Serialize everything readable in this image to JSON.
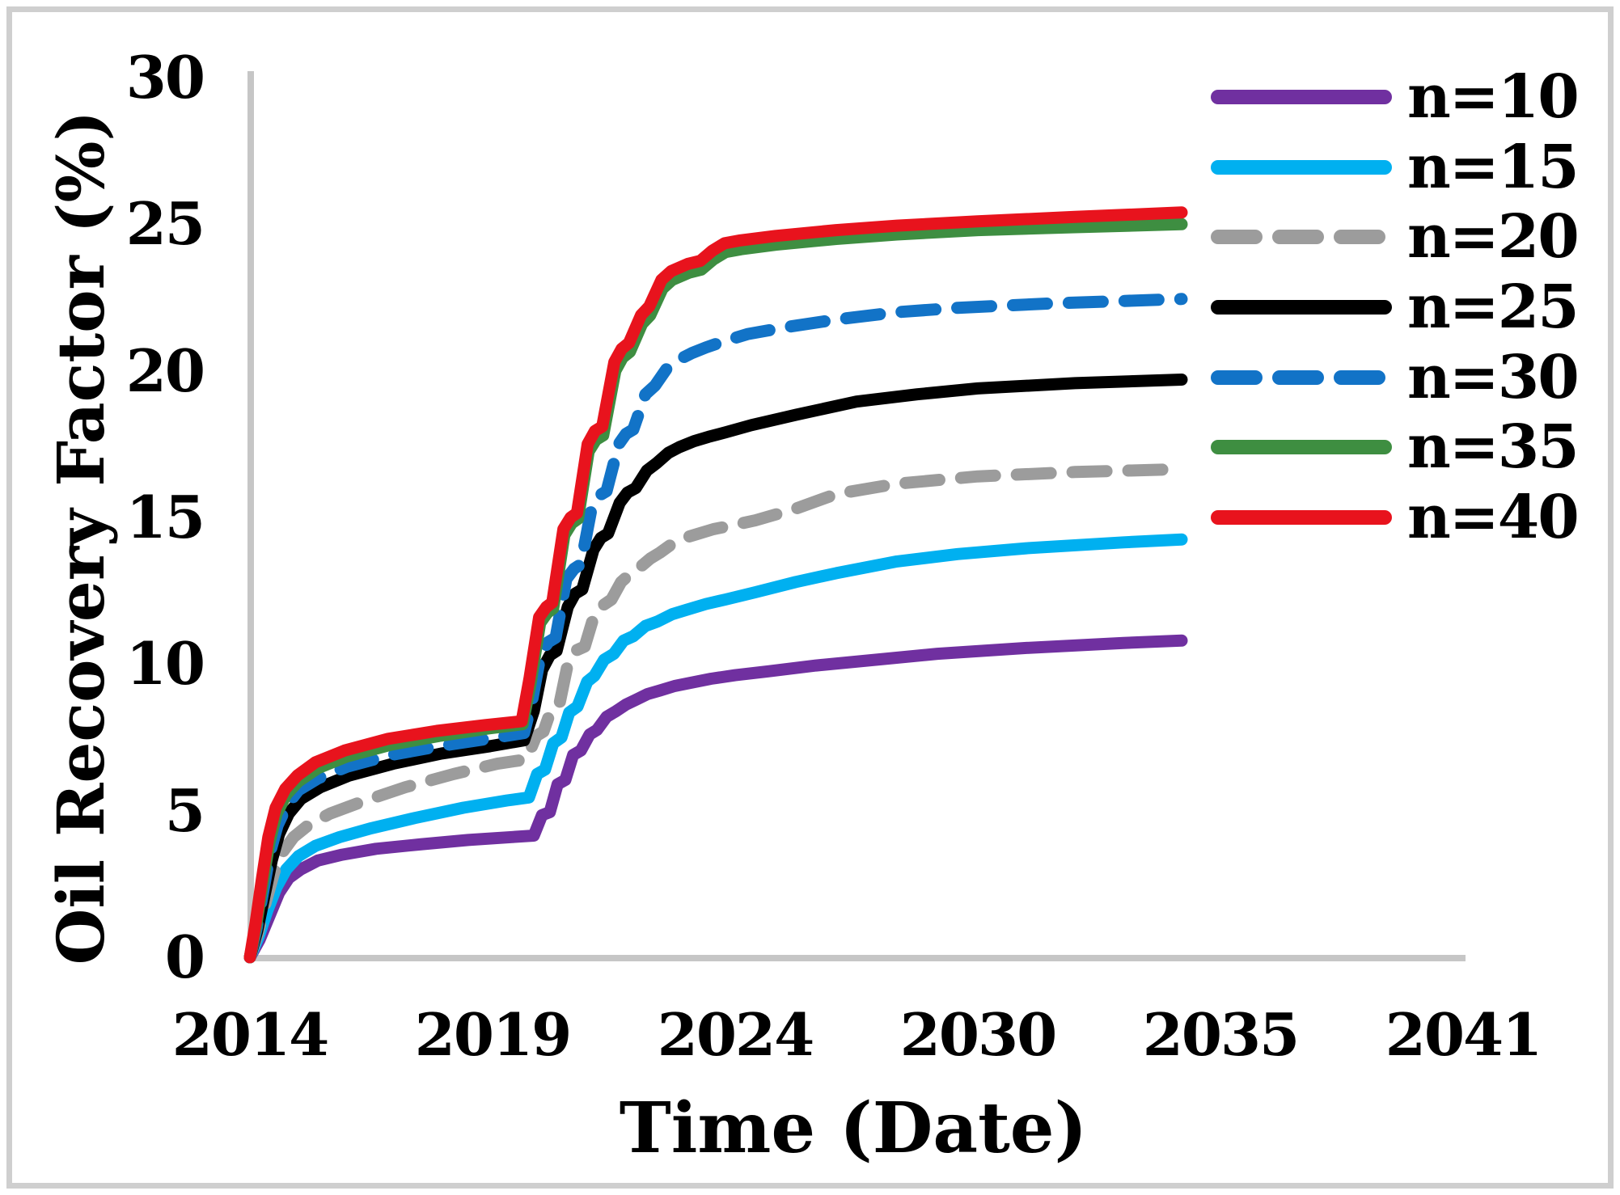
{
  "chart_data": {
    "type": "line",
    "title": "",
    "xlabel": "Time (Date)",
    "ylabel": "Oil Recovery Factor (%)",
    "x_tick_labels": [
      "2014",
      "2019",
      "2024",
      "2030",
      "2035",
      "2041"
    ],
    "x_tick_years": [
      2014,
      2019,
      2024,
      2030,
      2035,
      2041
    ],
    "y_tick_labels": [
      "0",
      "5",
      "10",
      "15",
      "20",
      "25",
      "30"
    ],
    "y_ticks": [
      0,
      5,
      10,
      15,
      20,
      25,
      30
    ],
    "ylim": [
      0,
      30
    ],
    "grid": false,
    "legend_position": "upper-right",
    "axis_color": "#C6C6C6",
    "series": [
      {
        "name": "n=10",
        "color": "#7030A0",
        "style": "solid",
        "points": [
          [
            2014,
            0
          ],
          [
            2014.2,
            0.6
          ],
          [
            2014.4,
            1.4
          ],
          [
            2014.6,
            2.2
          ],
          [
            2014.8,
            2.7
          ],
          [
            2015.05,
            3.0
          ],
          [
            2015.4,
            3.3
          ],
          [
            2015.9,
            3.5
          ],
          [
            2016.6,
            3.7
          ],
          [
            2017.5,
            3.85
          ],
          [
            2018.5,
            4.0
          ],
          [
            2019.4,
            4.1
          ],
          [
            2019.85,
            4.15
          ],
          [
            2020.02,
            4.85
          ],
          [
            2020.18,
            4.95
          ],
          [
            2020.34,
            5.9
          ],
          [
            2020.5,
            6.05
          ],
          [
            2020.66,
            6.9
          ],
          [
            2020.82,
            7.05
          ],
          [
            2021.0,
            7.6
          ],
          [
            2021.15,
            7.75
          ],
          [
            2021.35,
            8.2
          ],
          [
            2021.55,
            8.4
          ],
          [
            2021.75,
            8.62
          ],
          [
            2021.95,
            8.78
          ],
          [
            2022.2,
            8.98
          ],
          [
            2022.45,
            9.1
          ],
          [
            2022.75,
            9.25
          ],
          [
            2023.05,
            9.35
          ],
          [
            2023.5,
            9.5
          ],
          [
            2024.0,
            9.62
          ],
          [
            2024.8,
            9.75
          ],
          [
            2026.0,
            9.95
          ],
          [
            2027.5,
            10.15
          ],
          [
            2029.0,
            10.35
          ],
          [
            2031.0,
            10.55
          ],
          [
            2033.0,
            10.72
          ],
          [
            2034.2,
            10.8
          ]
        ]
      },
      {
        "name": "n=15",
        "color": "#00B0F0",
        "style": "solid",
        "points": [
          [
            2014,
            0
          ],
          [
            2014.18,
            0.7
          ],
          [
            2014.36,
            1.6
          ],
          [
            2014.55,
            2.4
          ],
          [
            2014.75,
            3.0
          ],
          [
            2015.0,
            3.45
          ],
          [
            2015.35,
            3.8
          ],
          [
            2015.85,
            4.1
          ],
          [
            2016.5,
            4.4
          ],
          [
            2017.4,
            4.75
          ],
          [
            2018.4,
            5.1
          ],
          [
            2019.3,
            5.35
          ],
          [
            2019.75,
            5.45
          ],
          [
            2019.92,
            6.25
          ],
          [
            2020.08,
            6.4
          ],
          [
            2020.25,
            7.3
          ],
          [
            2020.42,
            7.5
          ],
          [
            2020.58,
            8.35
          ],
          [
            2020.75,
            8.55
          ],
          [
            2020.95,
            9.4
          ],
          [
            2021.1,
            9.6
          ],
          [
            2021.3,
            10.15
          ],
          [
            2021.5,
            10.35
          ],
          [
            2021.7,
            10.8
          ],
          [
            2021.9,
            10.95
          ],
          [
            2022.15,
            11.3
          ],
          [
            2022.4,
            11.45
          ],
          [
            2022.7,
            11.7
          ],
          [
            2023.0,
            11.85
          ],
          [
            2023.4,
            12.05
          ],
          [
            2023.8,
            12.2
          ],
          [
            2024.5,
            12.45
          ],
          [
            2025.5,
            12.8
          ],
          [
            2026.5,
            13.1
          ],
          [
            2028.0,
            13.5
          ],
          [
            2029.5,
            13.75
          ],
          [
            2031.0,
            13.95
          ],
          [
            2033.0,
            14.15
          ],
          [
            2034.2,
            14.25
          ]
        ]
      },
      {
        "name": "n=20",
        "color": "#9C9C9C",
        "style": "dashed",
        "points": [
          [
            2014,
            0
          ],
          [
            2014.16,
            0.8
          ],
          [
            2014.33,
            1.9
          ],
          [
            2014.5,
            2.9
          ],
          [
            2014.68,
            3.6
          ],
          [
            2014.9,
            4.1
          ],
          [
            2015.2,
            4.5
          ],
          [
            2015.65,
            4.9
          ],
          [
            2016.3,
            5.3
          ],
          [
            2017.2,
            5.8
          ],
          [
            2018.2,
            6.25
          ],
          [
            2019.1,
            6.6
          ],
          [
            2019.7,
            6.75
          ],
          [
            2019.9,
            7.55
          ],
          [
            2020.05,
            7.7
          ],
          [
            2020.22,
            8.5
          ],
          [
            2020.38,
            8.65
          ],
          [
            2020.55,
            10.0
          ],
          [
            2020.7,
            10.45
          ],
          [
            2020.9,
            10.6
          ],
          [
            2021.1,
            11.7
          ],
          [
            2021.27,
            12.0
          ],
          [
            2021.45,
            12.2
          ],
          [
            2021.65,
            12.8
          ],
          [
            2021.82,
            13.05
          ],
          [
            2022.0,
            13.25
          ],
          [
            2022.25,
            13.6
          ],
          [
            2022.45,
            13.8
          ],
          [
            2022.7,
            14.1
          ],
          [
            2022.95,
            14.3
          ],
          [
            2023.25,
            14.45
          ],
          [
            2023.55,
            14.6
          ],
          [
            2023.85,
            14.7
          ],
          [
            2024.5,
            14.9
          ],
          [
            2025.5,
            15.3
          ],
          [
            2026.5,
            15.8
          ],
          [
            2028.0,
            16.15
          ],
          [
            2030.0,
            16.4
          ],
          [
            2032.0,
            16.55
          ],
          [
            2034.2,
            16.65
          ]
        ]
      },
      {
        "name": "n=25",
        "color": "#000000",
        "style": "solid",
        "points": [
          [
            2014,
            0
          ],
          [
            2014.15,
            0.9
          ],
          [
            2014.3,
            2.1
          ],
          [
            2014.45,
            3.3
          ],
          [
            2014.6,
            4.2
          ],
          [
            2014.8,
            4.9
          ],
          [
            2015.05,
            5.4
          ],
          [
            2015.45,
            5.8
          ],
          [
            2016.05,
            6.2
          ],
          [
            2016.95,
            6.6
          ],
          [
            2017.95,
            6.95
          ],
          [
            2018.95,
            7.2
          ],
          [
            2019.65,
            7.4
          ],
          [
            2019.85,
            8.4
          ],
          [
            2020.02,
            9.8
          ],
          [
            2020.18,
            10.3
          ],
          [
            2020.32,
            10.45
          ],
          [
            2020.55,
            11.95
          ],
          [
            2020.7,
            12.4
          ],
          [
            2020.85,
            12.55
          ],
          [
            2021.08,
            13.9
          ],
          [
            2021.23,
            14.3
          ],
          [
            2021.38,
            14.45
          ],
          [
            2021.62,
            15.5
          ],
          [
            2021.78,
            15.85
          ],
          [
            2021.95,
            16.0
          ],
          [
            2022.18,
            16.6
          ],
          [
            2022.38,
            16.85
          ],
          [
            2022.62,
            17.2
          ],
          [
            2022.85,
            17.4
          ],
          [
            2023.15,
            17.6
          ],
          [
            2023.45,
            17.75
          ],
          [
            2023.8,
            17.9
          ],
          [
            2024.4,
            18.15
          ],
          [
            2025.5,
            18.5
          ],
          [
            2027.0,
            18.95
          ],
          [
            2028.5,
            19.2
          ],
          [
            2030.0,
            19.4
          ],
          [
            2032.0,
            19.58
          ],
          [
            2034.2,
            19.7
          ]
        ]
      },
      {
        "name": "n=30",
        "color": "#1273C7",
        "style": "dashed",
        "points": [
          [
            2014,
            0
          ],
          [
            2014.14,
            1.0
          ],
          [
            2014.28,
            2.3
          ],
          [
            2014.42,
            3.6
          ],
          [
            2014.57,
            4.5
          ],
          [
            2014.77,
            5.2
          ],
          [
            2015.0,
            5.7
          ],
          [
            2015.4,
            6.1
          ],
          [
            2016.0,
            6.5
          ],
          [
            2016.9,
            6.9
          ],
          [
            2017.9,
            7.2
          ],
          [
            2018.9,
            7.45
          ],
          [
            2019.65,
            7.65
          ],
          [
            2019.82,
            8.8
          ],
          [
            2020.0,
            10.4
          ],
          [
            2020.15,
            10.75
          ],
          [
            2020.3,
            10.9
          ],
          [
            2020.52,
            12.9
          ],
          [
            2020.68,
            13.25
          ],
          [
            2020.82,
            13.4
          ],
          [
            2021.05,
            15.4
          ],
          [
            2021.2,
            15.75
          ],
          [
            2021.35,
            15.9
          ],
          [
            2021.6,
            17.5
          ],
          [
            2021.75,
            17.85
          ],
          [
            2021.9,
            18.0
          ],
          [
            2022.15,
            19.2
          ],
          [
            2022.35,
            19.5
          ],
          [
            2022.6,
            20.1
          ],
          [
            2022.8,
            20.35
          ],
          [
            2023.1,
            20.6
          ],
          [
            2023.4,
            20.8
          ],
          [
            2023.75,
            21.0
          ],
          [
            2024.3,
            21.25
          ],
          [
            2025.3,
            21.5
          ],
          [
            2026.5,
            21.75
          ],
          [
            2028.0,
            22.0
          ],
          [
            2029.5,
            22.15
          ],
          [
            2031.5,
            22.3
          ],
          [
            2034.2,
            22.45
          ]
        ]
      },
      {
        "name": "n=35",
        "color": "#3E8E41",
        "style": "solid",
        "points": [
          [
            2014,
            0
          ],
          [
            2014.13,
            1.1
          ],
          [
            2014.26,
            2.5
          ],
          [
            2014.4,
            3.9
          ],
          [
            2014.55,
            4.9
          ],
          [
            2014.75,
            5.55
          ],
          [
            2015.0,
            6.0
          ],
          [
            2015.4,
            6.45
          ],
          [
            2016.0,
            6.85
          ],
          [
            2016.9,
            7.25
          ],
          [
            2017.9,
            7.55
          ],
          [
            2018.9,
            7.8
          ],
          [
            2019.62,
            7.95
          ],
          [
            2019.78,
            9.3
          ],
          [
            2019.98,
            11.4
          ],
          [
            2020.13,
            11.75
          ],
          [
            2020.25,
            11.9
          ],
          [
            2020.48,
            14.4
          ],
          [
            2020.63,
            14.8
          ],
          [
            2020.76,
            14.95
          ],
          [
            2020.98,
            17.25
          ],
          [
            2021.13,
            17.65
          ],
          [
            2021.28,
            17.8
          ],
          [
            2021.53,
            20.0
          ],
          [
            2021.68,
            20.45
          ],
          [
            2021.83,
            20.65
          ],
          [
            2022.08,
            21.6
          ],
          [
            2022.25,
            21.9
          ],
          [
            2022.5,
            22.8
          ],
          [
            2022.7,
            23.1
          ],
          [
            2023.05,
            23.35
          ],
          [
            2023.3,
            23.45
          ],
          [
            2023.55,
            23.8
          ],
          [
            2023.8,
            24.05
          ],
          [
            2024.15,
            24.15
          ],
          [
            2025.0,
            24.3
          ],
          [
            2026.5,
            24.5
          ],
          [
            2028.0,
            24.65
          ],
          [
            2030.0,
            24.8
          ],
          [
            2032.0,
            24.9
          ],
          [
            2034.2,
            25.0
          ]
        ]
      },
      {
        "name": "n=40",
        "color": "#E8131D",
        "style": "solid",
        "points": [
          [
            2014,
            0
          ],
          [
            2014.12,
            1.2
          ],
          [
            2014.25,
            2.7
          ],
          [
            2014.38,
            4.1
          ],
          [
            2014.53,
            5.1
          ],
          [
            2014.73,
            5.75
          ],
          [
            2014.98,
            6.2
          ],
          [
            2015.35,
            6.65
          ],
          [
            2015.95,
            7.05
          ],
          [
            2016.85,
            7.45
          ],
          [
            2017.85,
            7.72
          ],
          [
            2018.85,
            7.92
          ],
          [
            2019.6,
            8.05
          ],
          [
            2019.76,
            9.5
          ],
          [
            2019.96,
            11.6
          ],
          [
            2020.11,
            11.95
          ],
          [
            2020.23,
            12.1
          ],
          [
            2020.46,
            14.6
          ],
          [
            2020.61,
            15.0
          ],
          [
            2020.74,
            15.15
          ],
          [
            2020.96,
            17.5
          ],
          [
            2021.11,
            17.95
          ],
          [
            2021.26,
            18.1
          ],
          [
            2021.51,
            20.3
          ],
          [
            2021.66,
            20.75
          ],
          [
            2021.81,
            20.95
          ],
          [
            2022.06,
            21.9
          ],
          [
            2022.23,
            22.2
          ],
          [
            2022.48,
            23.1
          ],
          [
            2022.68,
            23.4
          ],
          [
            2023.03,
            23.65
          ],
          [
            2023.28,
            23.75
          ],
          [
            2023.53,
            24.1
          ],
          [
            2023.78,
            24.35
          ],
          [
            2024.13,
            24.45
          ],
          [
            2025.0,
            24.6
          ],
          [
            2026.5,
            24.8
          ],
          [
            2028.0,
            24.95
          ],
          [
            2030.0,
            25.1
          ],
          [
            2032.0,
            25.25
          ],
          [
            2034.2,
            25.4
          ]
        ]
      }
    ]
  }
}
